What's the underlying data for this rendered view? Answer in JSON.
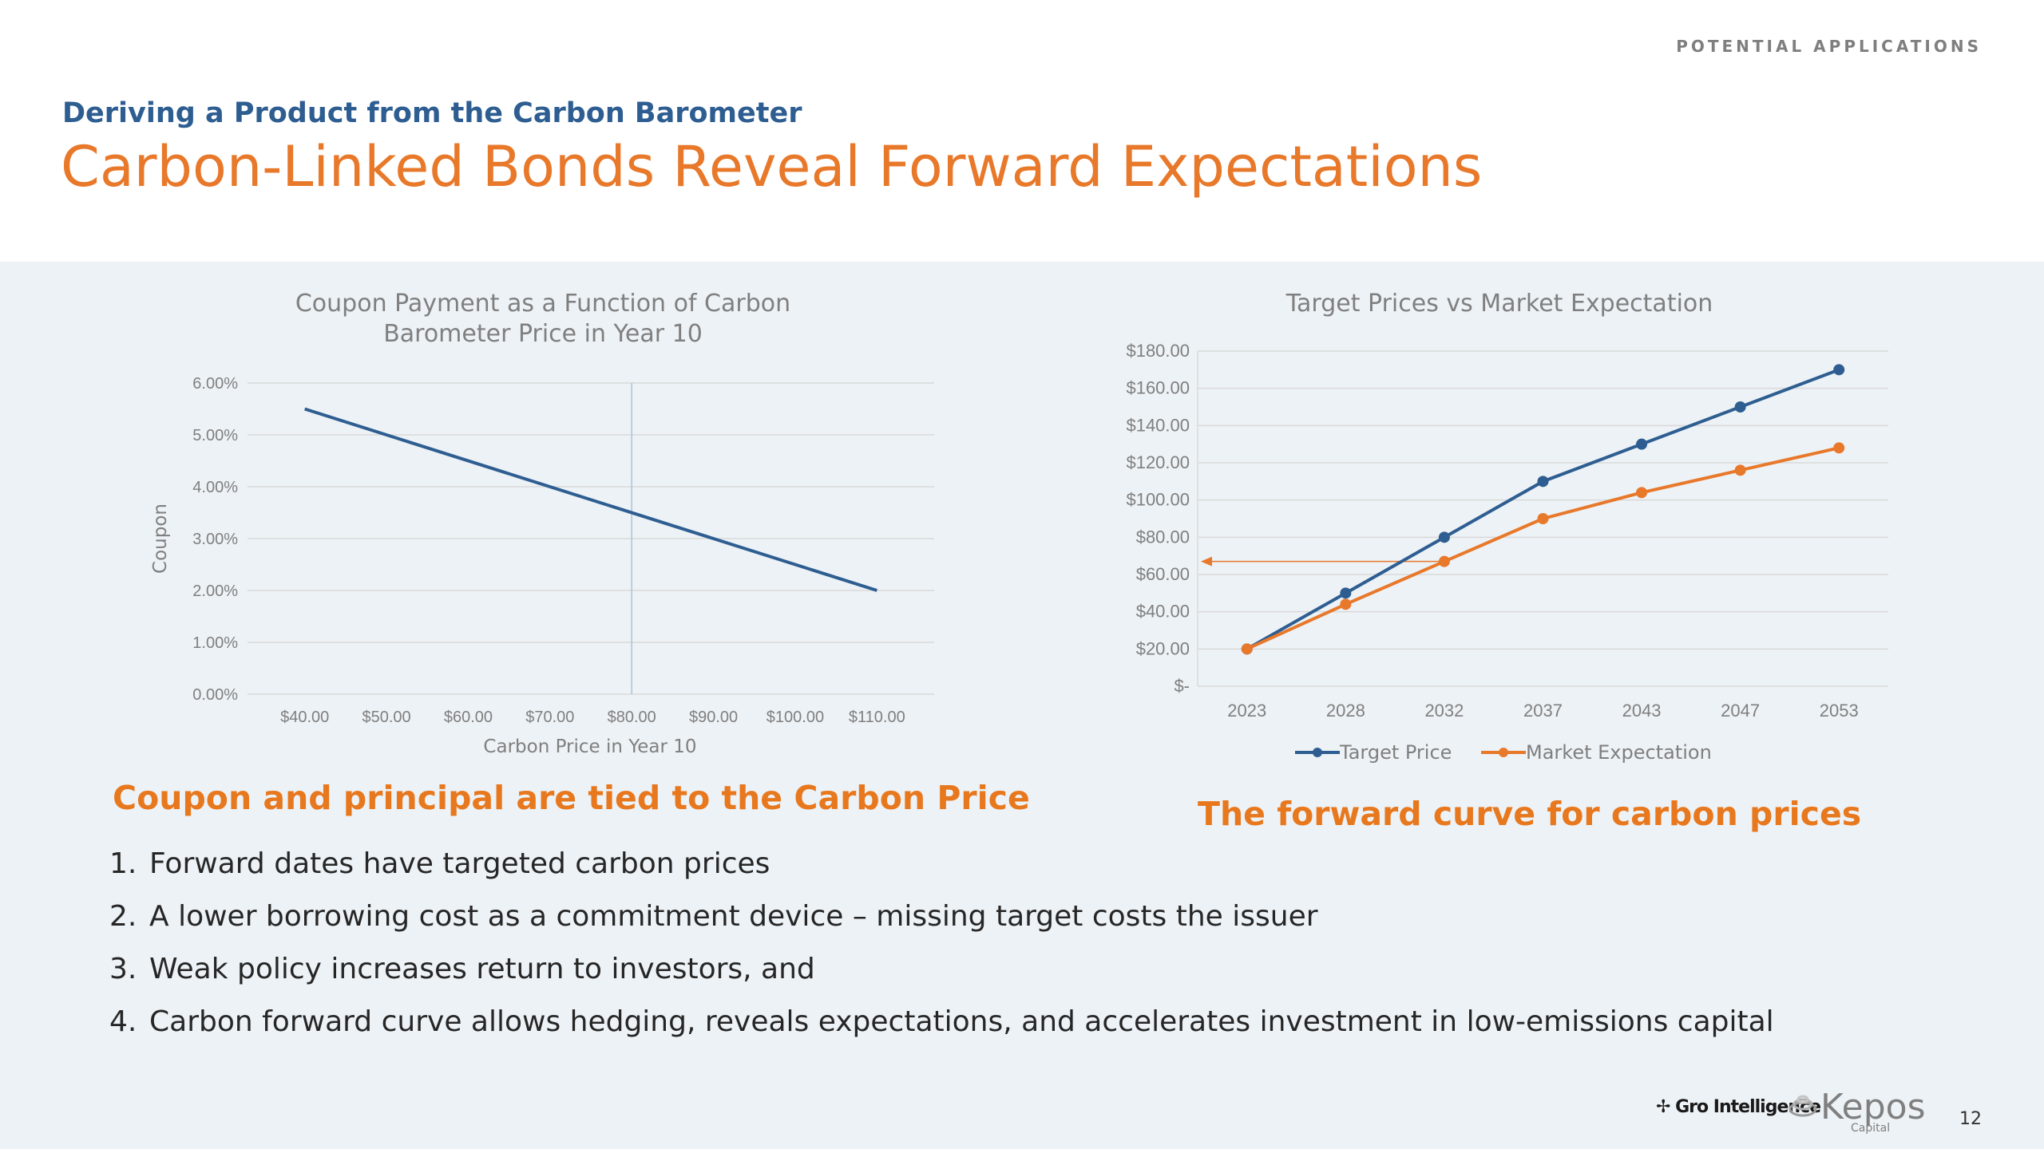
{
  "header": {
    "section_tag": "POTENTIAL APPLICATIONS",
    "subtitle": "Deriving a Product from the Carbon Barometer",
    "title": "Carbon-Linked Bonds Reveal Forward Expectations"
  },
  "chart_data": [
    {
      "type": "line",
      "title_lines": [
        "Coupon Payment as a Function of Carbon",
        "Barometer Price in Year 10"
      ],
      "xlabel": "Carbon Price in Year 10",
      "ylabel": "Coupon",
      "x_ticks": [
        "$40.00",
        "$50.00",
        "$60.00",
        "$70.00",
        "$80.00",
        "$90.00",
        "$100.00",
        "$110.00"
      ],
      "y_ticks": [
        "0.00%",
        "1.00%",
        "2.00%",
        "3.00%",
        "4.00%",
        "5.00%",
        "6.00%"
      ],
      "xlim": [
        40,
        110
      ],
      "ylim": [
        0,
        6
      ],
      "series": [
        {
          "x": [
            40,
            110
          ],
          "y": [
            5.5,
            2.0
          ],
          "color": "#2e5e91"
        }
      ],
      "reference_line_x": 80,
      "grid": true
    },
    {
      "type": "line",
      "title": "Target Prices vs Market Expectation",
      "categories": [
        "2023",
        "2028",
        "2032",
        "2037",
        "2043",
        "2047",
        "2053"
      ],
      "y_ticks": [
        "$-",
        "$20.00",
        "$40.00",
        "$60.00",
        "$80.00",
        "$100.00",
        "$120.00",
        "$140.00",
        "$160.00",
        "$180.00"
      ],
      "ylim": [
        0,
        180
      ],
      "series": [
        {
          "name": "Target Price",
          "values": [
            20,
            50,
            80,
            110,
            130,
            150,
            170
          ],
          "color": "#2e5e91"
        },
        {
          "name": "Market Expectation",
          "values": [
            20,
            44,
            67,
            90,
            104,
            116,
            128
          ],
          "color": "#e8782a"
        }
      ],
      "reference_arrow_y": 67,
      "legend": "bottom",
      "grid": true
    }
  ],
  "captions": {
    "left": "Coupon and principal are tied to the Carbon Price",
    "right": "The forward curve for carbon prices"
  },
  "list_items": [
    {
      "num": "1.",
      "text": "Forward dates have targeted carbon prices"
    },
    {
      "num": "2.",
      "text": "A lower borrowing cost as a commitment device – missing target costs the issuer"
    },
    {
      "num": "3.",
      "text": "Weak policy increases return to investors, and"
    },
    {
      "num": "4.",
      "text": "Carbon forward curve allows hedging, reveals expectations, and accelerates investment in low-emissions capital"
    }
  ],
  "footer": {
    "gro_logo_text": "Gro Intelligence",
    "kepos_logo_text": "Kepos",
    "kepos_logo_sub": "Capital",
    "page_number": "12"
  },
  "colors": {
    "accent_orange": "#e8782a",
    "accent_blue": "#2e5e91",
    "panel_bg": "#edf2f6"
  }
}
